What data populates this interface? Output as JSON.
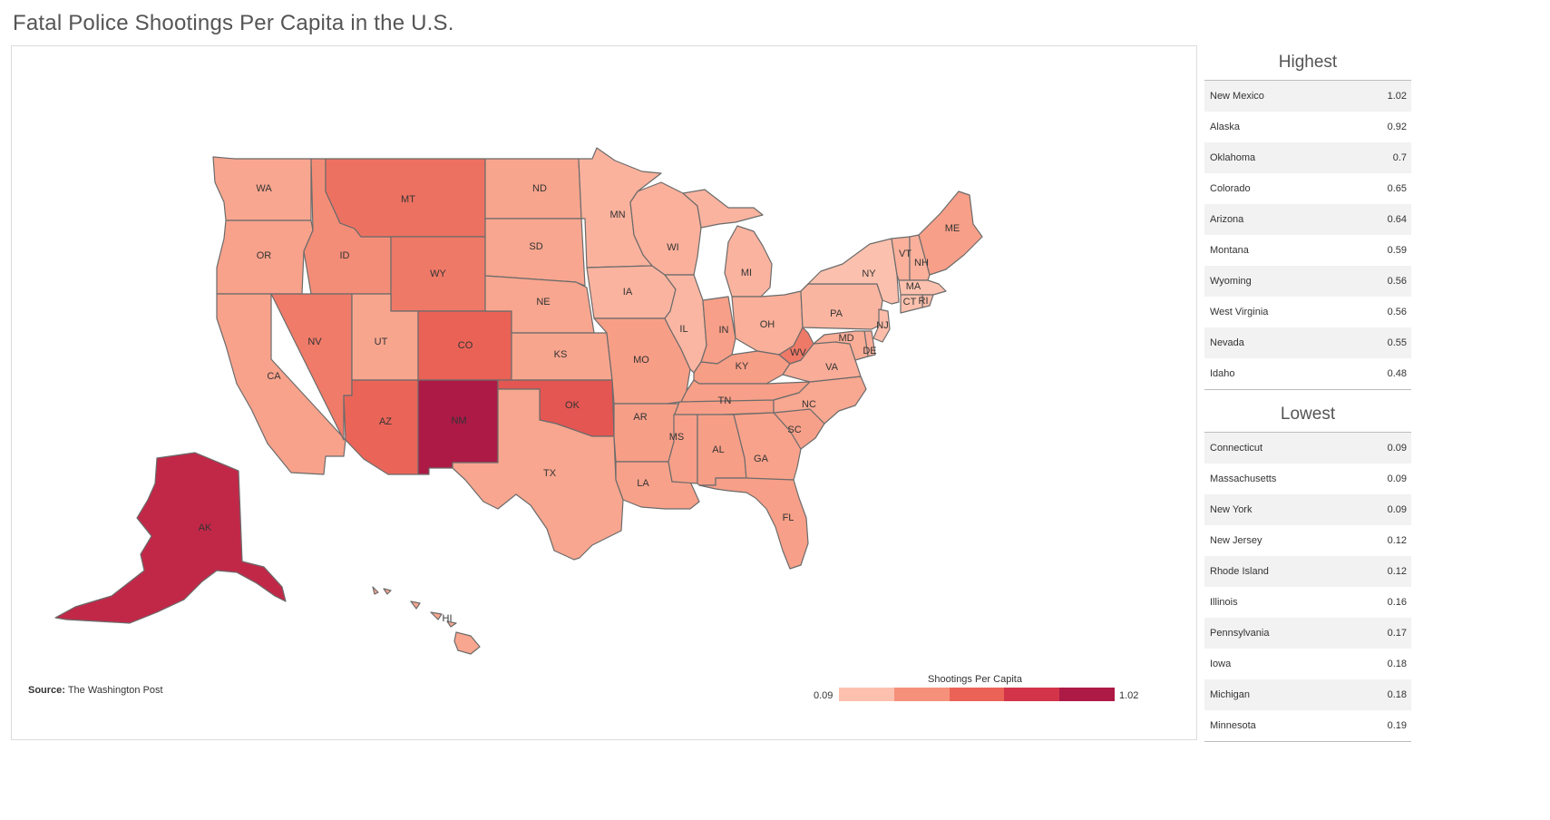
{
  "title": "Fatal Police Shootings Per Capita in the U.S.",
  "source": {
    "label": "Source:",
    "text": "The Washington Post"
  },
  "legend": {
    "title": "Shootings Per Capita",
    "min": "0.09",
    "max": "1.02",
    "colors": [
      "#fcc1ae",
      "#f5917a",
      "#ea6356",
      "#d33449",
      "#ad1a46"
    ]
  },
  "map_data": {
    "value_range": [
      0.09,
      1.02
    ],
    "states": [
      {
        "code": "WA",
        "value": 0.27
      },
      {
        "code": "OR",
        "value": 0.3
      },
      {
        "code": "CA",
        "value": 0.3
      },
      {
        "code": "ID",
        "value": 0.48
      },
      {
        "code": "NV",
        "value": 0.55
      },
      {
        "code": "MT",
        "value": 0.59
      },
      {
        "code": "WY",
        "value": 0.56
      },
      {
        "code": "UT",
        "value": 0.28
      },
      {
        "code": "CO",
        "value": 0.65
      },
      {
        "code": "AZ",
        "value": 0.64
      },
      {
        "code": "NM",
        "value": 1.02
      },
      {
        "code": "AK",
        "value": 0.92
      },
      {
        "code": "HI",
        "value": 0.27
      },
      {
        "code": "ND",
        "value": 0.28
      },
      {
        "code": "SD",
        "value": 0.27
      },
      {
        "code": "NE",
        "value": 0.27
      },
      {
        "code": "KS",
        "value": 0.28
      },
      {
        "code": "OK",
        "value": 0.7
      },
      {
        "code": "TX",
        "value": 0.27
      },
      {
        "code": "MN",
        "value": 0.19
      },
      {
        "code": "IA",
        "value": 0.18
      },
      {
        "code": "MO",
        "value": 0.34
      },
      {
        "code": "AR",
        "value": 0.34
      },
      {
        "code": "LA",
        "value": 0.31
      },
      {
        "code": "WI",
        "value": 0.2
      },
      {
        "code": "IL",
        "value": 0.16
      },
      {
        "code": "MI",
        "value": 0.18
      },
      {
        "code": "IN",
        "value": 0.33
      },
      {
        "code": "OH",
        "value": 0.21
      },
      {
        "code": "KY",
        "value": 0.34
      },
      {
        "code": "TN",
        "value": 0.33
      },
      {
        "code": "MS",
        "value": 0.33
      },
      {
        "code": "AL",
        "value": 0.34
      },
      {
        "code": "GA",
        "value": 0.3
      },
      {
        "code": "FL",
        "value": 0.33
      },
      {
        "code": "SC",
        "value": 0.32
      },
      {
        "code": "NC",
        "value": 0.26
      },
      {
        "code": "VA",
        "value": 0.22
      },
      {
        "code": "WV",
        "value": 0.56
      },
      {
        "code": "PA",
        "value": 0.17
      },
      {
        "code": "NY",
        "value": 0.09
      },
      {
        "code": "VT",
        "value": 0.2
      },
      {
        "code": "NH",
        "value": 0.2
      },
      {
        "code": "ME",
        "value": 0.33
      },
      {
        "code": "MA",
        "value": 0.09
      },
      {
        "code": "RI",
        "value": 0.12
      },
      {
        "code": "CT",
        "value": 0.09
      },
      {
        "code": "NJ",
        "value": 0.12
      },
      {
        "code": "DE",
        "value": 0.22
      },
      {
        "code": "MD",
        "value": 0.23
      }
    ]
  },
  "highest": {
    "title": "Highest",
    "rows": [
      {
        "name": "New Mexico",
        "value": "1.02"
      },
      {
        "name": "Alaska",
        "value": "0.92"
      },
      {
        "name": "Oklahoma",
        "value": "0.7"
      },
      {
        "name": "Colorado",
        "value": "0.65"
      },
      {
        "name": "Arizona",
        "value": "0.64"
      },
      {
        "name": "Montana",
        "value": "0.59"
      },
      {
        "name": "Wyoming",
        "value": "0.56"
      },
      {
        "name": "West Virginia",
        "value": "0.56"
      },
      {
        "name": "Nevada",
        "value": "0.55"
      },
      {
        "name": "Idaho",
        "value": "0.48"
      }
    ]
  },
  "lowest": {
    "title": "Lowest",
    "rows": [
      {
        "name": "Connecticut",
        "value": "0.09"
      },
      {
        "name": "Massachusetts",
        "value": "0.09"
      },
      {
        "name": "New York",
        "value": "0.09"
      },
      {
        "name": "New Jersey",
        "value": "0.12"
      },
      {
        "name": "Rhode Island",
        "value": "0.12"
      },
      {
        "name": "Illinois",
        "value": "0.16"
      },
      {
        "name": "Pennsylvania",
        "value": "0.17"
      },
      {
        "name": "Iowa",
        "value": "0.18"
      },
      {
        "name": "Michigan",
        "value": "0.18"
      },
      {
        "name": "Minnesota",
        "value": "0.19"
      }
    ]
  }
}
